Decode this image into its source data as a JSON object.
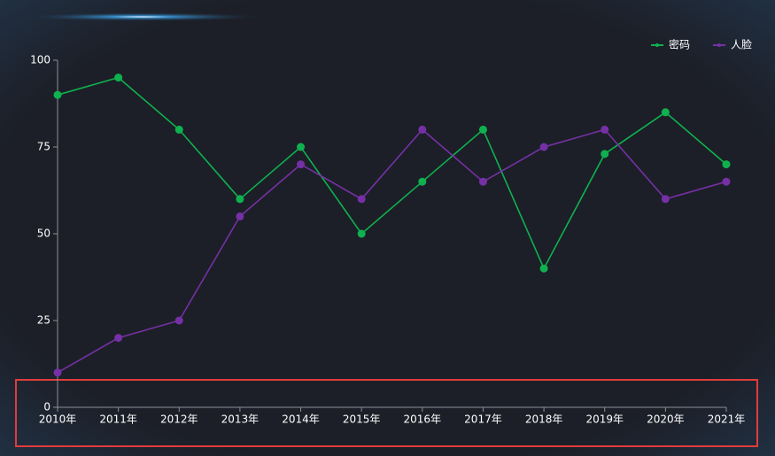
{
  "chart_data": {
    "type": "line",
    "categories": [
      "2010年",
      "2011年",
      "2012年",
      "2013年",
      "2014年",
      "2015年",
      "2016年",
      "2017年",
      "2018年",
      "2019年",
      "2020年",
      "2021年"
    ],
    "series": [
      {
        "name": "密码",
        "color": "#0fb14f",
        "values": [
          90,
          95,
          80,
          60,
          75,
          50,
          65,
          80,
          40,
          73,
          85,
          70
        ]
      },
      {
        "name": "人脸",
        "color": "#7530a6",
        "values": [
          10,
          20,
          25,
          55,
          70,
          60,
          80,
          65,
          75,
          80,
          60,
          65
        ]
      }
    ],
    "ylim": [
      0,
      100
    ],
    "yticks": [
      0,
      25,
      50,
      75,
      100
    ],
    "grid": false,
    "legend": "top-right"
  }
}
